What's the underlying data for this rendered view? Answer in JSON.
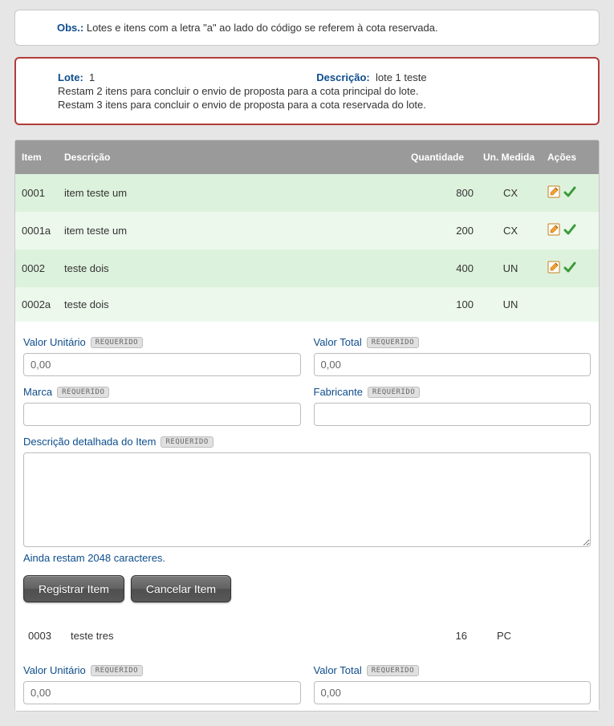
{
  "obs": {
    "label": "Obs.:",
    "text": "Lotes e itens com a letra \"a\" ao lado do código se referem à cota reservada."
  },
  "lote": {
    "label": "Lote:",
    "num": "1",
    "descr_label": "Descrição:",
    "descr": "lote 1 teste",
    "msg1": "Restam 2 itens para concluir o envio de proposta para a cota principal do lote.",
    "msg2": "Restam 3 itens para concluir o envio de proposta para a cota reservada do lote."
  },
  "headers": {
    "item": "Item",
    "desc": "Descrição",
    "qtd": "Quantidade",
    "un": "Un. Medida",
    "act": "Ações"
  },
  "rows": [
    {
      "item": "0001",
      "desc": "item teste um",
      "qtd": "800",
      "un": "CX",
      "icons": true,
      "cls": "row-odd"
    },
    {
      "item": "0001a",
      "desc": "item teste um",
      "qtd": "200",
      "un": "CX",
      "icons": true,
      "cls": "row-even"
    },
    {
      "item": "0002",
      "desc": "teste dois",
      "qtd": "400",
      "un": "UN",
      "icons": true,
      "cls": "row-odd"
    },
    {
      "item": "0002a",
      "desc": "teste dois",
      "qtd": "100",
      "un": "UN",
      "icons": false,
      "cls": "row-even"
    }
  ],
  "form": {
    "valor_unit_label": "Valor Unitário",
    "valor_total_label": "Valor Total",
    "marca_label": "Marca",
    "fabricante_label": "Fabricante",
    "descricao_label": "Descrição detalhada do Item",
    "requerido": "REQUERIDO",
    "valor_unit": "0,00",
    "valor_total": "0,00",
    "marca": "",
    "fabricante": "",
    "descricao": "",
    "char_msg": "Ainda restam 2048 caracteres.",
    "btn_registrar": "Registrar Item",
    "btn_cancelar": "Cancelar Item"
  },
  "item3": {
    "item": "0003",
    "desc": "teste tres",
    "qtd": "16",
    "un": "PC"
  },
  "form2": {
    "valor_unit_label": "Valor Unitário",
    "valor_total_label": "Valor Total",
    "requerido": "REQUERIDO",
    "valor_unit": "0,00",
    "valor_total": "0,00"
  },
  "colors": {
    "header_bg": "#9a9a9a",
    "row_odd": "#ddf2dd",
    "row_even": "#ecf8ec",
    "accent": "#0d4d8c",
    "error_border": "#b23b3b"
  }
}
